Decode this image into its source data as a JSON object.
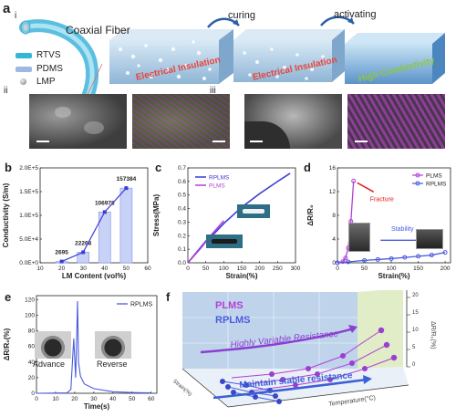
{
  "panel_a": {
    "label": "a",
    "sub_i": "i",
    "sub_ii": "ii",
    "sub_iii": "iii",
    "fiber_title": "Coaxial Fiber",
    "legend": [
      {
        "name": "RTVS",
        "color": "#33b7d6"
      },
      {
        "name": "PDMS",
        "color": "#9bb8e6"
      },
      {
        "name": "LMP",
        "color": "#b0b0b0"
      }
    ],
    "arrow_labels": [
      "curing",
      "activating"
    ],
    "block_labels": [
      "Electrical Insulation",
      "Electrical Insulation",
      "High Conductivity"
    ],
    "block_label_colors": [
      "#e8453c",
      "#e8453c",
      "#8ec63f"
    ]
  },
  "panel_b": {
    "label": "b",
    "chart_data": {
      "type": "bar",
      "categories": [
        "20",
        "30",
        "40",
        "50"
      ],
      "values": [
        2695,
        22268,
        106978,
        157384
      ],
      "data_labels": [
        "2695",
        "22268",
        "106978",
        "157384"
      ],
      "xlabel": "LM Content (vol%)",
      "ylabel": "Conductivity (S/m)",
      "yticks": [
        "0.0E+0",
        "5.0E+4",
        "1.0E+5",
        "1.5E+5",
        "2.0E+5"
      ],
      "xticks": [
        "10",
        "20",
        "30",
        "40",
        "50",
        "60"
      ],
      "xlim": [
        10,
        60
      ],
      "ylim": [
        0,
        200000
      ],
      "trend": "line"
    }
  },
  "panel_c": {
    "label": "c",
    "chart_data": {
      "type": "line",
      "xlabel": "Strain(%)",
      "ylabel": "Stress(MPa)",
      "xticks": [
        "0",
        "50",
        "100",
        "150",
        "200",
        "250",
        "300"
      ],
      "yticks": [
        "0.0",
        "0.1",
        "0.2",
        "0.3",
        "0.4",
        "0.5",
        "0.6",
        "0.7"
      ],
      "xlim": [
        0,
        300
      ],
      "ylim": [
        0,
        0.7
      ],
      "legend_position": "top-left",
      "series": [
        {
          "name": "RPLMS",
          "color": "#3b3bd6",
          "x": [
            0,
            25,
            50,
            75,
            100,
            150,
            200,
            250,
            285
          ],
          "y": [
            0,
            0.08,
            0.16,
            0.22,
            0.29,
            0.41,
            0.51,
            0.6,
            0.66
          ]
        },
        {
          "name": "PLMS",
          "color": "#b43fd6",
          "x": [
            0,
            20,
            40,
            60,
            80,
            100
          ],
          "y": [
            0,
            0.06,
            0.12,
            0.19,
            0.25,
            0.31
          ]
        }
      ]
    }
  },
  "panel_d": {
    "label": "d",
    "annotations": [
      "Fracture",
      "Stability"
    ],
    "chart_data": {
      "type": "line",
      "xlabel": "Strain(%)",
      "ylabel": "ΔR/R₀",
      "xticks": [
        "0",
        "50",
        "100",
        "150",
        "200"
      ],
      "yticks": [
        "0",
        "4",
        "8",
        "12",
        "16"
      ],
      "xlim": [
        0,
        210
      ],
      "ylim": [
        0,
        16
      ],
      "legend_position": "top-right",
      "series": [
        {
          "name": "PLMS",
          "color": "#b43fd6",
          "x": [
            0,
            10,
            15,
            20,
            25,
            30
          ],
          "y": [
            0,
            0.2,
            0.8,
            2.5,
            7,
            13.8
          ]
        },
        {
          "name": "RPLMS",
          "color": "#4a5be0",
          "x": [
            0,
            20,
            50,
            75,
            100,
            125,
            150,
            175,
            200
          ],
          "y": [
            0,
            0.15,
            0.4,
            0.55,
            0.7,
            0.9,
            1.1,
            1.3,
            1.75
          ]
        }
      ]
    }
  },
  "panel_e": {
    "label": "e",
    "photo_labels": [
      "Advance",
      "Reverse"
    ],
    "chart_data": {
      "type": "line",
      "xlabel": "Time(s)",
      "ylabel": "ΔR/R₀(%)",
      "xticks": [
        "0",
        "10",
        "20",
        "30",
        "40",
        "50",
        "60"
      ],
      "yticks": [
        "0",
        "20",
        "40",
        "60",
        "80",
        "100",
        "120"
      ],
      "xlim": [
        0,
        63
      ],
      "ylim": [
        0,
        125
      ],
      "legend_position": "top-right",
      "series": [
        {
          "name": "RPLMS",
          "color": "#4a5be0",
          "x": [
            0,
            16,
            18,
            19.5,
            20.5,
            21.5,
            22,
            23,
            25,
            30,
            40,
            50,
            60
          ],
          "y": [
            0,
            0.5,
            5,
            70,
            20,
            118,
            40,
            22,
            12,
            6,
            2,
            1,
            0.5
          ]
        }
      ]
    }
  },
  "panel_f": {
    "label": "f",
    "legend": [
      {
        "name": "PLMS",
        "color": "#b43fd6"
      },
      {
        "name": "RPLMS",
        "color": "#4a5be0"
      }
    ],
    "arrow_labels": [
      "Highly Variable Resistance",
      "Maintain stable resistance"
    ],
    "axis_labels": [
      "Temperature(°C)",
      "ΔR/R₀(%)",
      "Strain(%)"
    ],
    "z_ticks": [
      "20",
      "15",
      "10",
      "5",
      "0"
    ]
  }
}
